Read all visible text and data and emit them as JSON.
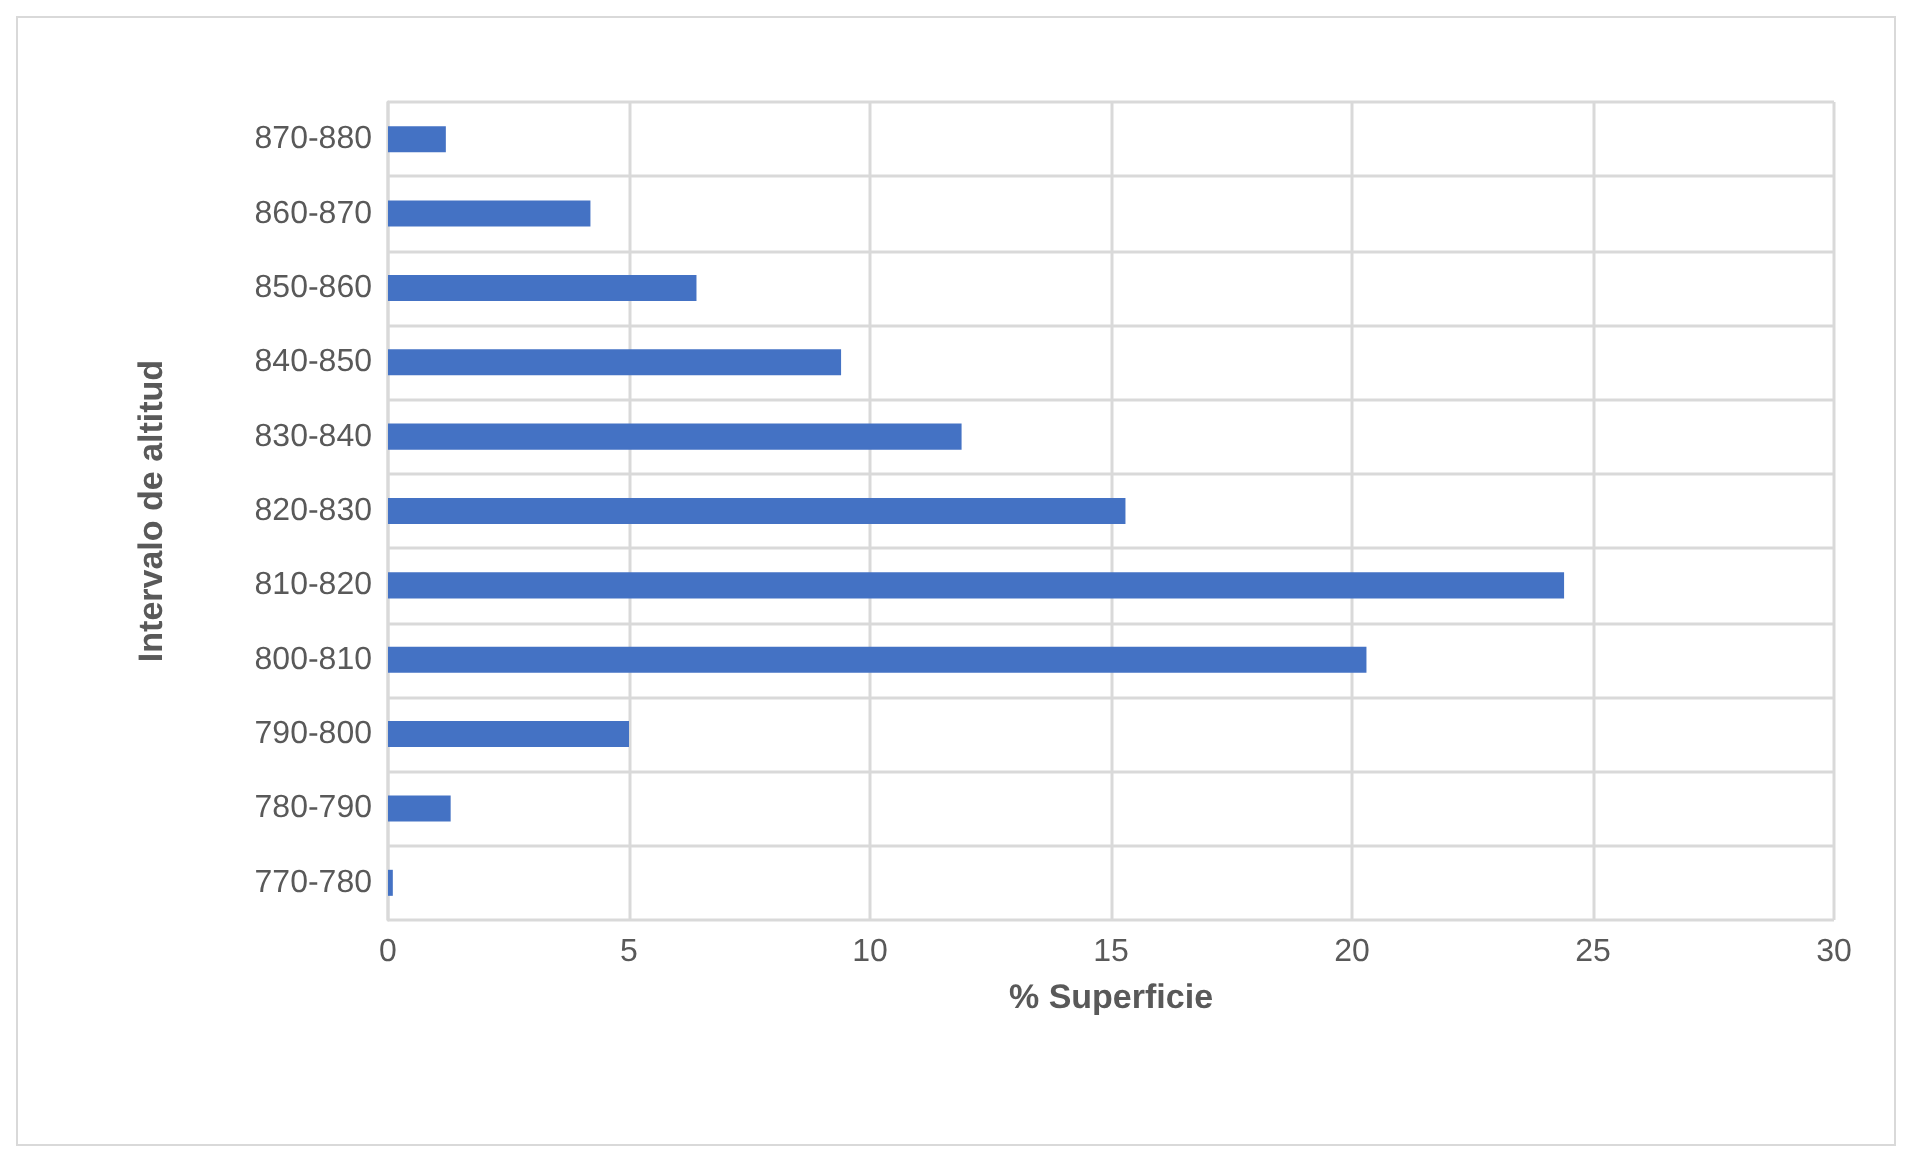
{
  "chart_data": {
    "type": "bar",
    "orientation": "horizontal",
    "xlabel": "% Superficie",
    "ylabel": "Intervalo de altitud",
    "categories": [
      "870-880",
      "860-870",
      "850-860",
      "840-850",
      "830-840",
      "820-830",
      "810-820",
      "800-810",
      "790-800",
      "780-790",
      "770-780"
    ],
    "values": [
      1.2,
      4.2,
      6.4,
      9.4,
      11.9,
      15.3,
      24.4,
      20.3,
      5.0,
      1.3,
      0.1
    ],
    "color": "#4472c4",
    "xlim": [
      0,
      30
    ],
    "xticks": [
      0,
      5,
      10,
      15,
      20,
      25,
      30
    ],
    "grid": true
  }
}
